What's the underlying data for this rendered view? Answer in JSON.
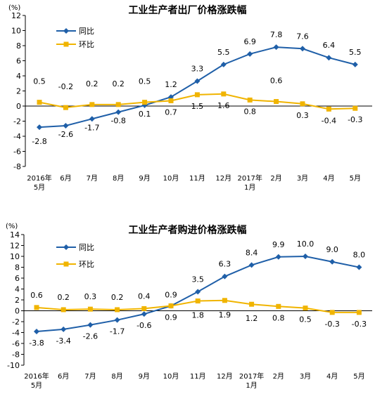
{
  "colors": {
    "yoy": "#1f5fa8",
    "mom": "#f0b400",
    "axis": "#000000"
  },
  "chart_data": [
    {
      "type": "line",
      "title": "工业生产者出厂价格涨跌幅",
      "unit": "(%)",
      "ylim": [
        -8,
        12
      ],
      "yticks": [
        12,
        10,
        8,
        6,
        4,
        2,
        0,
        -2,
        -4,
        -6,
        -8
      ],
      "categories": [
        [
          "2016年",
          "5月"
        ],
        [
          "6月"
        ],
        [
          "7月"
        ],
        [
          "8月"
        ],
        [
          "9月"
        ],
        [
          "10月"
        ],
        [
          "11月"
        ],
        [
          "12月"
        ],
        [
          "2017年",
          "1月"
        ],
        [
          "2月"
        ],
        [
          "3月"
        ],
        [
          "4月"
        ],
        [
          "5月"
        ]
      ],
      "legend_position": "top-left",
      "series": [
        {
          "name": "同比",
          "key": "yoy",
          "values": [
            -2.8,
            -2.6,
            -1.7,
            -0.8,
            0.1,
            1.2,
            3.3,
            5.5,
            6.9,
            7.8,
            7.6,
            6.4,
            5.5
          ],
          "labels": [
            "-2.8",
            "-2.6",
            "-1.7",
            "-0.8",
            "0.1",
            "1.2",
            "3.3",
            "5.5",
            "6.9",
            "7.8",
            "7.6",
            "6.4",
            "5.5"
          ]
        },
        {
          "name": "环比",
          "key": "mom",
          "values": [
            0.5,
            -0.2,
            0.2,
            0.2,
            0.5,
            0.7,
            1.5,
            1.6,
            0.8,
            0.6,
            0.3,
            -0.4,
            -0.3
          ],
          "labels": [
            "0.5",
            "-0.2",
            "0.2",
            "0.2",
            "0.5",
            "0.7",
            "1.5",
            "1.6",
            "0.8",
            "0.6",
            "0.3",
            "-0.4",
            "-0.3"
          ]
        }
      ]
    },
    {
      "type": "line",
      "title": "工业生产者购进价格涨跌幅",
      "unit": "(%)",
      "ylim": [
        -10,
        14
      ],
      "yticks": [
        14,
        12,
        10,
        8,
        6,
        4,
        2,
        0,
        -2,
        -4,
        -6,
        -8,
        -10
      ],
      "categories": [
        [
          "2016年",
          "5月"
        ],
        [
          "6月"
        ],
        [
          "7月"
        ],
        [
          "8月"
        ],
        [
          "9月"
        ],
        [
          "10月"
        ],
        [
          "11月"
        ],
        [
          "12月"
        ],
        [
          "2017年",
          "1月"
        ],
        [
          "2月"
        ],
        [
          "3月"
        ],
        [
          "4月"
        ],
        [
          "5月"
        ]
      ],
      "legend_position": "top-left",
      "series": [
        {
          "name": "同比",
          "key": "yoy",
          "values": [
            -3.8,
            -3.4,
            -2.6,
            -1.7,
            -0.6,
            0.9,
            3.5,
            6.3,
            8.4,
            9.9,
            10.0,
            9.0,
            8.0
          ],
          "labels": [
            "-3.8",
            "-3.4",
            "-2.6",
            "-1.7",
            "-0.6",
            "0.9",
            "3.5",
            "6.3",
            "8.4",
            "9.9",
            "10.0",
            "9.0",
            "8.0"
          ]
        },
        {
          "name": "环比",
          "key": "mom",
          "values": [
            0.6,
            0.2,
            0.3,
            0.2,
            0.4,
            0.9,
            1.8,
            1.9,
            1.2,
            0.8,
            0.5,
            -0.3,
            -0.3
          ],
          "labels": [
            "0.6",
            "0.2",
            "0.3",
            "0.2",
            "0.4",
            "0.9",
            "1.8",
            "1.9",
            "1.2",
            "0.8",
            "0.5",
            "-0.3",
            "-0.3"
          ]
        }
      ]
    }
  ]
}
